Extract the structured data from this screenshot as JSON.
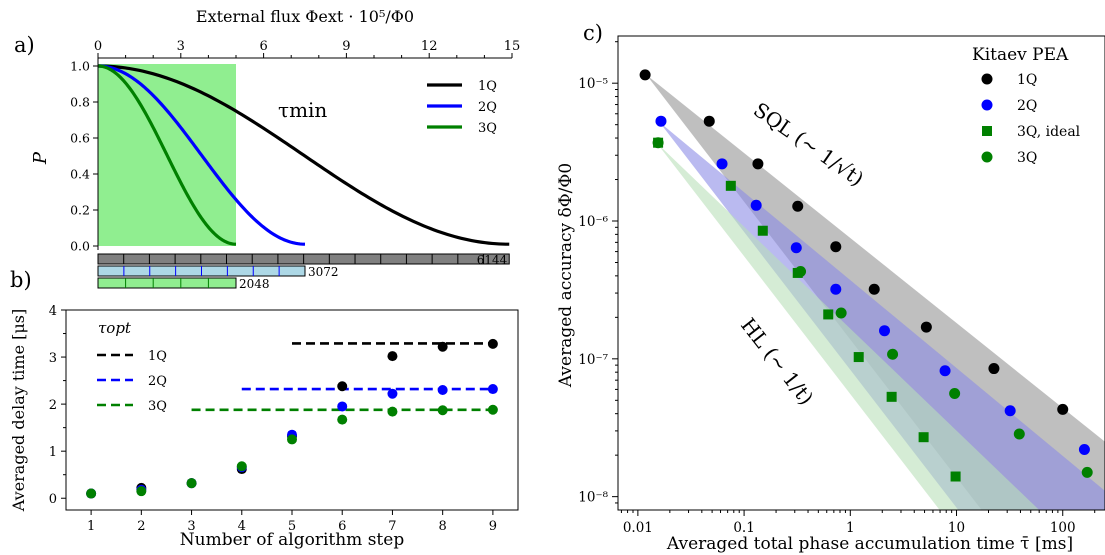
{
  "panel_labels": [
    "a)",
    "b)",
    "c)"
  ],
  "chart_data": [
    {
      "panel": "a)",
      "type": "line",
      "top_axis": {
        "label": "External flux Φext · 10⁵/Φ0",
        "ticks": [
          0,
          3,
          6,
          9,
          12,
          15
        ],
        "range": [
          0,
          15
        ]
      },
      "ylabel": "P",
      "ylim": [
        0,
        1.0
      ],
      "yticks": [
        "0.0",
        "0.2",
        "0.4",
        "0.6",
        "0.8",
        "1.0"
      ],
      "highlight_range": [
        0,
        5
      ],
      "highlight_color": "#90ee90",
      "annotation": "τmin",
      "legend_position": "top-right",
      "series": [
        {
          "name": "1Q",
          "color": "#000000",
          "x_end": 14.9,
          "y_start": 1.0,
          "y_end": 0.01
        },
        {
          "name": "2Q",
          "color": "#0000ff",
          "x_end": 7.5,
          "y_start": 1.0,
          "y_end": 0.01
        },
        {
          "name": "3Q",
          "color": "#008000",
          "x_end": 5.0,
          "y_start": 1.0,
          "y_end": 0.01
        }
      ],
      "bars": [
        {
          "label": "6144",
          "color": "#808080",
          "label_color": "#000000",
          "extent": 14.9,
          "segments": 16
        },
        {
          "label": "3072",
          "color": "#add8e6",
          "label_color": "#0000ff",
          "extent": 7.5,
          "segments": 8
        },
        {
          "label": "2048",
          "color": "#90ee90",
          "label_color": "#008000",
          "extent": 5.0,
          "segments": 5
        }
      ]
    },
    {
      "panel": "b)",
      "type": "scatter",
      "xlabel": "Number of algorithm step",
      "ylabel": "Averaged delay time [μs]",
      "xlim": [
        0.5,
        9.5
      ],
      "ylim": [
        -0.25,
        4
      ],
      "xticks": [
        1,
        2,
        3,
        4,
        5,
        6,
        7,
        8,
        9
      ],
      "yticks": [
        0,
        1,
        2,
        3,
        4
      ],
      "legend_title": "τopt",
      "legend_position": "top-left",
      "series": [
        {
          "name": "1Q",
          "color": "#000000",
          "x": [
            1,
            2,
            3,
            4,
            5,
            6,
            7,
            8,
            9
          ],
          "y": [
            0.1,
            0.22,
            0.32,
            0.62,
            1.32,
            2.38,
            3.02,
            3.22,
            3.28
          ],
          "opt_level": 3.29,
          "opt_x": [
            5,
            9
          ]
        },
        {
          "name": "2Q",
          "color": "#0000ff",
          "x": [
            1,
            2,
            3,
            4,
            5,
            6,
            7,
            8,
            9
          ],
          "y": [
            0.1,
            0.18,
            0.32,
            0.66,
            1.35,
            1.95,
            2.22,
            2.3,
            2.32
          ],
          "opt_level": 2.32,
          "opt_x": [
            4,
            9
          ]
        },
        {
          "name": "3Q",
          "color": "#008000",
          "x": [
            1,
            2,
            3,
            4,
            5,
            6,
            7,
            8,
            9
          ],
          "y": [
            0.1,
            0.15,
            0.32,
            0.68,
            1.25,
            1.67,
            1.84,
            1.87,
            1.88
          ],
          "opt_level": 1.88,
          "opt_x": [
            3,
            9
          ]
        }
      ]
    },
    {
      "panel": "c)",
      "type": "scatter",
      "xscale": "log",
      "yscale": "log",
      "xlabel": "Averaged total phase accumulation time τ̄ [ms]",
      "ylabel": "Averaged accuracy δΦ/Φ0",
      "xlim": [
        0.0065,
        250
      ],
      "ylim": [
        8e-09,
        2.2e-05
      ],
      "xticks": [
        0.01,
        0.1,
        1,
        10,
        100
      ],
      "xtick_labels": [
        "0.01",
        "0.1",
        "1",
        "10",
        "100"
      ],
      "yticks": [
        1e-08,
        1e-07,
        1e-06,
        1e-05
      ],
      "ytick_labels": [
        "10⁻⁸",
        "10⁻⁷",
        "10⁻⁶",
        "10⁻⁵"
      ],
      "legend_title": "Kitaev PEA",
      "legend_position": "top-right",
      "annotations": [
        "SQL (∼ 1/√t)",
        "HL (∼ 1/t)"
      ],
      "bands": [
        {
          "name": "1Q region",
          "color": "#a9a9a9",
          "apex": [
            0.012,
            1.15e-05
          ],
          "upper_end": [
            250,
            2.5e-08
          ],
          "lower_slope": -1
        },
        {
          "name": "2Q region",
          "color": "#8c8ce6",
          "apex": [
            0.016,
            5.2e-06
          ],
          "upper_end": [
            250,
            1.1e-08
          ],
          "lower_slope": -1
        },
        {
          "name": "3Q region",
          "color": "#b9dfb9",
          "apex": [
            0.015,
            3.7e-06
          ],
          "upper_end": [
            60,
            8e-09
          ],
          "lower_slope": -1
        }
      ],
      "series": [
        {
          "name": "1Q",
          "marker": "circle",
          "color": "#000000",
          "x": [
            0.0117,
            0.047,
            0.135,
            0.32,
            0.73,
            1.68,
            5.2,
            22.5,
            100
          ],
          "y": [
            1.15e-05,
            5.3e-06,
            2.6e-06,
            1.28e-06,
            6.5e-07,
            3.2e-07,
            1.7e-07,
            8.5e-08,
            4.3e-08
          ]
        },
        {
          "name": "2Q",
          "marker": "circle",
          "color": "#0000ff",
          "x": [
            0.0165,
            0.062,
            0.13,
            0.31,
            0.73,
            2.1,
            7.8,
            32,
            160
          ],
          "y": [
            5.3e-06,
            2.6e-06,
            1.3e-06,
            6.4e-07,
            3.2e-07,
            1.6e-07,
            8.2e-08,
            4.2e-08,
            2.2e-08
          ]
        },
        {
          "name": "3Q, ideal",
          "marker": "square",
          "color": "#008000",
          "x": [
            0.0155,
            0.075,
            0.15,
            0.32,
            0.62,
            1.2,
            2.45,
            4.9,
            9.8
          ],
          "y": [
            3.7e-06,
            1.8e-06,
            8.5e-07,
            4.2e-07,
            2.1e-07,
            1.03e-07,
            5.3e-08,
            2.7e-08,
            1.4e-08
          ]
        },
        {
          "name": "3Q",
          "marker": "circle",
          "color": "#008000",
          "x": [
            0.0155,
            0.34,
            0.82,
            2.5,
            9.6,
            39,
            170
          ],
          "y": [
            3.7e-06,
            4.3e-07,
            2.15e-07,
            1.08e-07,
            5.6e-08,
            2.85e-08,
            1.5e-08
          ]
        }
      ]
    }
  ]
}
